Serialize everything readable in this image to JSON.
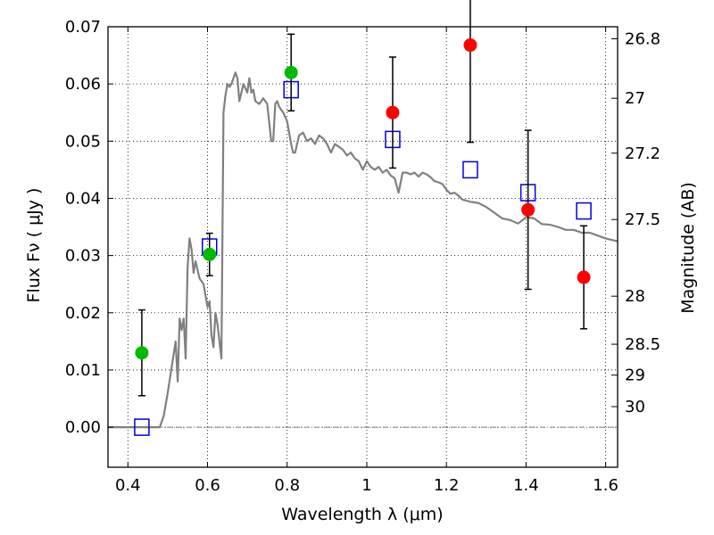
{
  "chart_data": {
    "type": "scatter",
    "xlabel": "Wavelength  λ (μm)",
    "ylabel": "Flux  Fν  ( μJy )",
    "y2label": "Magnitude (AB)",
    "xlim": [
      0.35,
      1.63
    ],
    "ylim": [
      -0.007,
      0.07
    ],
    "grid": true,
    "x_ticks": [
      0.4,
      0.6,
      0.8,
      1.0,
      1.2,
      1.4,
      1.6
    ],
    "x_tick_labels": [
      "0.4",
      "0.6",
      "0.8",
      "1",
      "1.2",
      "1.4",
      "1.6"
    ],
    "y_ticks": [
      0.0,
      0.01,
      0.02,
      0.03,
      0.04,
      0.05,
      0.06,
      0.07
    ],
    "y_tick_labels": [
      "0.00",
      "0.01",
      "0.02",
      "0.03",
      "0.04",
      "0.05",
      "0.06",
      "0.07"
    ],
    "y2_ticks": [
      {
        "label": "26.8",
        "flux": 0.0679
      },
      {
        "label": "27",
        "flux": 0.0575
      },
      {
        "label": "27.2",
        "flux": 0.0479
      },
      {
        "label": "27.5",
        "flux": 0.0363
      },
      {
        "label": "28",
        "flux": 0.0229
      },
      {
        "label": "28.5",
        "flux": 0.0145
      },
      {
        "label": "29",
        "flux": 0.0091
      },
      {
        "label": "30",
        "flux": 0.0036
      }
    ],
    "series": [
      {
        "kind": "line",
        "color": "#808080",
        "x": [
          0.35,
          0.48,
          0.49,
          0.5,
          0.52,
          0.525,
          0.53,
          0.535,
          0.54,
          0.545,
          0.55,
          0.555,
          0.56,
          0.565,
          0.57,
          0.58,
          0.59,
          0.6,
          0.605,
          0.61,
          0.615,
          0.62,
          0.625,
          0.63,
          0.635,
          0.64,
          0.645,
          0.65,
          0.655,
          0.66,
          0.67,
          0.675,
          0.68,
          0.69,
          0.7,
          0.705,
          0.71,
          0.715,
          0.72,
          0.73,
          0.74,
          0.75,
          0.76,
          0.765,
          0.77,
          0.775,
          0.78,
          0.79,
          0.8,
          0.81,
          0.815,
          0.82,
          0.83,
          0.84,
          0.85,
          0.86,
          0.87,
          0.88,
          0.89,
          0.9,
          0.91,
          0.92,
          0.93,
          0.94,
          0.95,
          0.96,
          0.97,
          0.98,
          0.99,
          1.0,
          1.01,
          1.02,
          1.03,
          1.04,
          1.05,
          1.06,
          1.07,
          1.08,
          1.09,
          1.1,
          1.11,
          1.12,
          1.13,
          1.14,
          1.15,
          1.16,
          1.17,
          1.18,
          1.19,
          1.2,
          1.21,
          1.22,
          1.23,
          1.24,
          1.25,
          1.26,
          1.28,
          1.3,
          1.32,
          1.34,
          1.36,
          1.38,
          1.4,
          1.42,
          1.44,
          1.46,
          1.48,
          1.5,
          1.52,
          1.54,
          1.56,
          1.58,
          1.6,
          1.63
        ],
        "y": [
          0.0,
          0.0,
          0.002,
          0.006,
          0.015,
          0.008,
          0.019,
          0.017,
          0.019,
          0.012,
          0.028,
          0.033,
          0.031,
          0.027,
          0.029,
          0.026,
          0.025,
          0.021,
          0.022,
          0.016,
          0.014,
          0.02,
          0.018,
          0.015,
          0.012,
          0.055,
          0.058,
          0.06,
          0.0595,
          0.06,
          0.062,
          0.061,
          0.057,
          0.06,
          0.0585,
          0.061,
          0.0585,
          0.059,
          0.057,
          0.0565,
          0.0575,
          0.0565,
          0.05,
          0.05,
          0.0565,
          0.057,
          0.056,
          0.055,
          0.0535,
          0.0495,
          0.048,
          0.048,
          0.051,
          0.0515,
          0.05,
          0.0505,
          0.0495,
          0.051,
          0.0505,
          0.0495,
          0.048,
          0.0495,
          0.049,
          0.0485,
          0.0475,
          0.048,
          0.047,
          0.0465,
          0.045,
          0.0465,
          0.0455,
          0.045,
          0.0455,
          0.0445,
          0.045,
          0.044,
          0.0435,
          0.041,
          0.0445,
          0.0445,
          0.0442,
          0.0445,
          0.0438,
          0.0445,
          0.0442,
          0.0437,
          0.043,
          0.0428,
          0.0425,
          0.0415,
          0.0408,
          0.041,
          0.0405,
          0.0398,
          0.0396,
          0.0394,
          0.0392,
          0.0385,
          0.0375,
          0.0365,
          0.0362,
          0.0356,
          0.0367,
          0.0365,
          0.0355,
          0.0354,
          0.035,
          0.0345,
          0.0345,
          0.034,
          0.034,
          0.0335,
          0.033,
          0.0325
        ]
      },
      {
        "kind": "open-square",
        "color": "#0000dd",
        "x": [
          0.435,
          0.605,
          0.81,
          1.065,
          1.26,
          1.405,
          1.545
        ],
        "y": [
          0.0,
          0.0315,
          0.059,
          0.0503,
          0.045,
          0.041,
          0.0378
        ]
      },
      {
        "kind": "point",
        "color": "#00bb00",
        "x": [
          0.435,
          0.605,
          0.81
        ],
        "y": [
          0.013,
          0.0302,
          0.062
        ],
        "yerr": [
          0.0075,
          0.0037,
          0.0067
        ]
      },
      {
        "kind": "point",
        "color": "#ff0000",
        "x": [
          1.065,
          1.26,
          1.405,
          1.545
        ],
        "y": [
          0.055,
          0.0668,
          0.038,
          0.0262
        ],
        "yerr": [
          0.0097,
          0.017,
          0.0139,
          0.009
        ]
      }
    ]
  }
}
